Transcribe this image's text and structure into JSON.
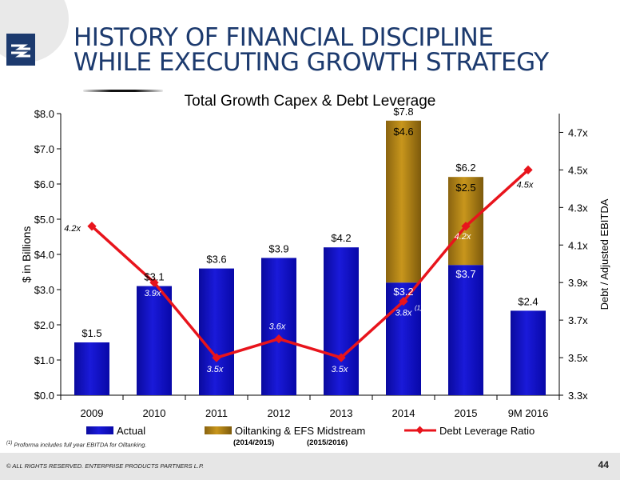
{
  "page": {
    "title_line1": "HISTORY OF FINANCIAL DISCIPLINE",
    "title_line2": "WHILE EXECUTING GROWTH STRATEGY",
    "footnote_marker": "(1)",
    "footnote": "Proforma includes full year EBITDA for Oiltanking.",
    "copyright": "© ALL RIGHTS RESERVED. ENTERPRISE PRODUCTS PARTNERS L.P.",
    "page_number": "44",
    "logo_icon": "enterprise-logo-icon"
  },
  "chart_data": {
    "type": "bar",
    "title": "Total Growth Capex & Debt Leverage",
    "categories": [
      "2009",
      "2010",
      "2011",
      "2012",
      "2013",
      "2014",
      "2015",
      "9M 2016"
    ],
    "ylabel": "$ in Billions",
    "y2label": "Debt / Adjusted EBITDA",
    "ylim": [
      0,
      8
    ],
    "y2lim": [
      3.3,
      4.8
    ],
    "yticks": [
      "$0.0",
      "$1.0",
      "$2.0",
      "$3.0",
      "$4.0",
      "$5.0",
      "$6.0",
      "$7.0",
      "$8.0"
    ],
    "y2ticks": [
      "3.3x",
      "3.5x",
      "3.7x",
      "3.9x",
      "4.1x",
      "4.3x",
      "4.5x",
      "4.7x"
    ],
    "series": [
      {
        "name": "Actual",
        "kind": "bar",
        "color": "#1a1ad9",
        "values": [
          1.5,
          3.1,
          3.6,
          3.9,
          4.2,
          3.2,
          3.7,
          2.4
        ],
        "labels": [
          "",
          "",
          "",
          "",
          "",
          "$3.2",
          "$3.7",
          ""
        ]
      },
      {
        "name": "Oiltanking & EFS Midstream",
        "kind": "bar-stacked",
        "color": "#c8961c",
        "values": [
          0,
          0,
          0,
          0,
          0,
          4.6,
          2.5,
          0
        ],
        "labels": [
          "",
          "",
          "",
          "",
          "",
          "$4.6",
          "$2.5",
          ""
        ]
      },
      {
        "name": "Debt Leverage Ratio",
        "kind": "line",
        "axis": "right",
        "color": "#e8141c",
        "values": [
          4.2,
          3.9,
          3.5,
          3.6,
          3.5,
          3.8,
          4.2,
          4.5
        ],
        "labels": [
          "4.2x",
          "3.9x",
          "3.5x",
          "3.6x",
          "3.5x",
          "3.8x",
          "4.2x",
          "4.5x"
        ]
      }
    ],
    "totals": [
      "$1.5",
      "$3.1",
      "$3.6",
      "$3.9",
      "$4.2",
      "$7.8",
      "$6.2",
      "$2.4"
    ],
    "ratio_footnote_marker": "(1)",
    "legend_position": "bottom",
    "legend_sublabels": [
      "(2014/2015)",
      "(2015/2016)"
    ],
    "grid": false
  }
}
